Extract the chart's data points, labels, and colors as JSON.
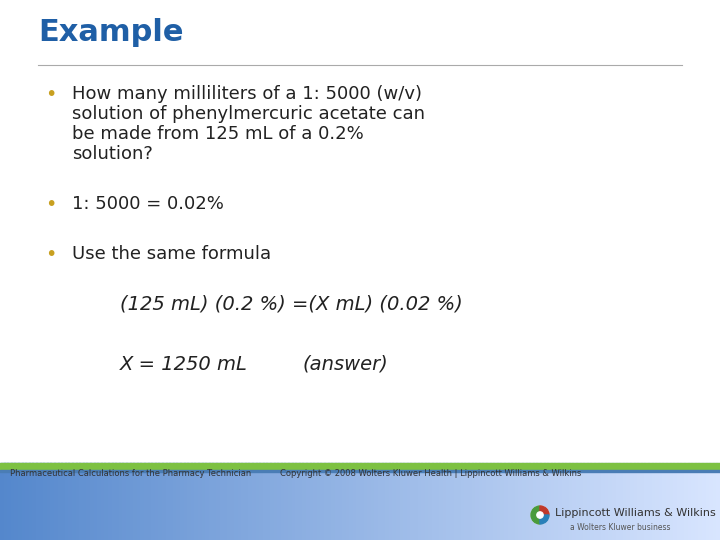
{
  "title": "Example",
  "title_color": "#1F5FA6",
  "title_fontsize": 22,
  "bullet_color": "#C8A020",
  "text_color": "#222222",
  "background_color": "#FFFFFF",
  "bullet1_line1": "How many milliliters of a 1: 5000 (w/v)",
  "bullet1_line2": "solution of phenylmercuric acetate can",
  "bullet1_line3": "be made from 125 mL of a 0.2%",
  "bullet1_line4": "solution?",
  "bullet2": "1: 5000 = 0.02%",
  "bullet3": "Use the same formula",
  "formula1": "(125 mL) (0.2 %) =(X mL) (0.02 %)",
  "formula2_part1": "X = 1250 mL ",
  "formula2_part2": "(answer)",
  "footer_left": "Pharmaceutical Calculations for the Pharmacy Technician",
  "footer_right": "Copyright © 2008 Wolters Kluwer Health | Lippincott Williams & Wilkins",
  "footer_logo": "Lippincott Williams & Wilkins",
  "footer_sublogo": "a Wolters Kluwer business",
  "main_fontsize": 13,
  "formula_fontsize": 14,
  "footer_fontsize": 6
}
